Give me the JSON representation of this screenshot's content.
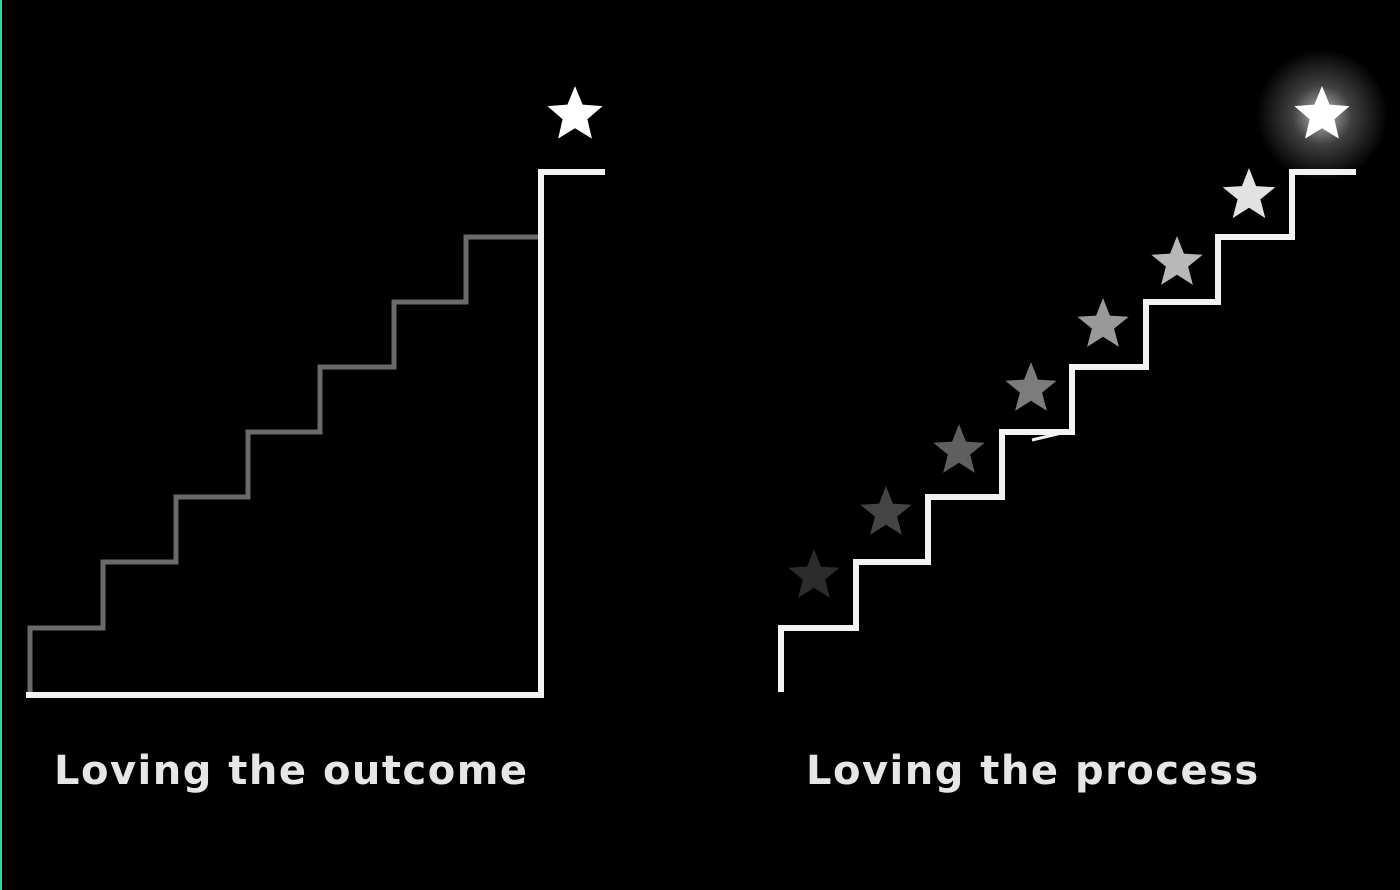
{
  "panels": [
    {
      "caption": "Loving the outcome"
    },
    {
      "caption": "Loving the process"
    }
  ],
  "colors": {
    "background": "#000000",
    "line_bright": "#f2f2f2",
    "line_dim": "#6a6a6a",
    "caption": "#e6e6e6",
    "edge_accent": "#2fd89a"
  },
  "icons": {
    "goal": "star-icon",
    "milestone": "star-icon"
  },
  "process_star_brightness": [
    "#2c2c2c",
    "#444444",
    "#5f5f5f",
    "#7c7c7c",
    "#999999",
    "#b8b8b8",
    "#e2e2e2",
    "#ffffff"
  ]
}
